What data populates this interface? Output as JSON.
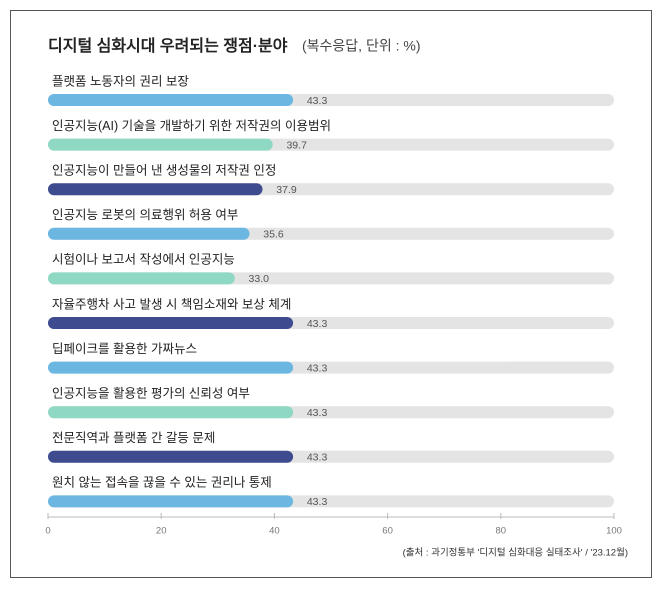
{
  "chart_data": {
    "type": "barh",
    "title": "디지털 심화시대 우려되는 쟁점·분야",
    "subtitle": "(복수응답, 단위 : %)",
    "categories": [
      "플랫폼 노동자의 권리 보장",
      "인공지능(AI) 기술을 개발하기 위한 저작권의 이용범위",
      "인공지능이 만들어 낸 생성물의 저작권 인정",
      "인공지능 로봇의 의료행위 허용 여부",
      "시험이나 보고서 작성에서 인공지능",
      "자율주행차 사고 발생 시 책임소재와 보상 체계",
      "딥페이크를 활용한 가짜뉴스",
      "인공지능을 활용한 평가의 신뢰성 여부",
      "전문직역과 플랫폼 간 갈등 문제",
      "원치 않는 접속을 끊을 수 있는 권리나 통제"
    ],
    "values": [
      43.3,
      39.7,
      37.9,
      35.6,
      33.0,
      43.3,
      43.3,
      43.3,
      43.3,
      43.3
    ],
    "value_labels": [
      "43.3",
      "39.7",
      "37.9",
      "35.6",
      "33.0",
      "43.3",
      "43.3",
      "43.3",
      "43.3",
      "43.3"
    ],
    "colors": [
      "#6cb6e2",
      "#8fd8c3",
      "#3e4b8e",
      "#6cb6e2",
      "#8fd8c3",
      "#3e4b8e",
      "#6cb6e2",
      "#8fd8c3",
      "#3e4b8e",
      "#6cb6e2"
    ],
    "xlim": [
      0,
      100
    ],
    "xticks": [
      0,
      20,
      40,
      60,
      80,
      100
    ],
    "source": "(출처 : 과기정통부 '디지털 심화대응 실태조사' / '23.12월)"
  }
}
